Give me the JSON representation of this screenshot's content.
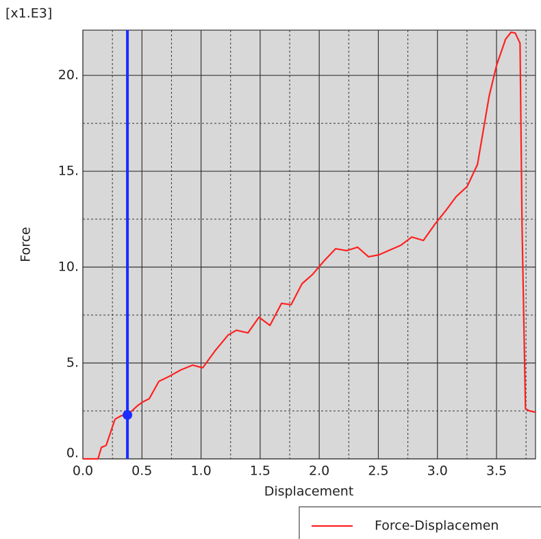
{
  "chart_data": {
    "type": "line",
    "multiplier": "[x1.E3]",
    "xlabel": "Displacement",
    "ylabel": "Force",
    "xlim": [
      0,
      3.83
    ],
    "ylim": [
      0,
      22.36
    ],
    "xticks": [
      {
        "value": 0,
        "label": "0.0"
      },
      {
        "value": 0.5,
        "label": "0.5"
      },
      {
        "value": 1,
        "label": "1.0"
      },
      {
        "value": 1.5,
        "label": "1.5"
      },
      {
        "value": 2,
        "label": "2.0"
      },
      {
        "value": 2.5,
        "label": "2.5"
      },
      {
        "value": 3,
        "label": "3.0"
      },
      {
        "value": 3.5,
        "label": "3.5"
      }
    ],
    "yticks": [
      {
        "value": 0,
        "label": "0."
      },
      {
        "value": 5,
        "label": "5."
      },
      {
        "value": 10,
        "label": "10."
      },
      {
        "value": 15,
        "label": "15."
      },
      {
        "value": 20,
        "label": "20."
      }
    ],
    "grid": true,
    "x": [
      0,
      0.128,
      0.157,
      0.197,
      0.272,
      0.325,
      0.377,
      0.458,
      0.504,
      0.562,
      0.643,
      0.736,
      0.829,
      0.928,
      1.014,
      1.119,
      1.229,
      1.299,
      1.397,
      1.49,
      1.583,
      1.681,
      1.762,
      1.855,
      1.942,
      2.046,
      2.139,
      2.232,
      2.325,
      2.417,
      2.504,
      2.69,
      2.783,
      2.881,
      2.98,
      3.072,
      3.159,
      3.252,
      3.339,
      3.438,
      3.501,
      3.577,
      3.623,
      3.658,
      3.699,
      3.716,
      3.745,
      3.78,
      3.83
    ],
    "series": [
      {
        "name": "Force-Displacemen",
        "color": "#ff2020",
        "values": [
          0,
          0,
          0.6,
          0.7,
          2.07,
          2.25,
          2.29,
          2.75,
          2.96,
          3.14,
          4.04,
          4.32,
          4.64,
          4.89,
          4.75,
          5.64,
          6.46,
          6.71,
          6.57,
          7.39,
          6.96,
          8.11,
          8.04,
          9.14,
          9.61,
          10.36,
          10.96,
          10.86,
          11.04,
          10.54,
          10.64,
          11.14,
          11.57,
          11.39,
          12.25,
          12.96,
          13.68,
          14.21,
          15.36,
          18.93,
          20.54,
          21.89,
          22.25,
          22.21,
          21.68,
          12.14,
          2.61,
          2.5,
          2.43
        ]
      }
    ],
    "cursor": {
      "x": 0.377,
      "y": 2.29,
      "color": "#1a2cff"
    }
  }
}
